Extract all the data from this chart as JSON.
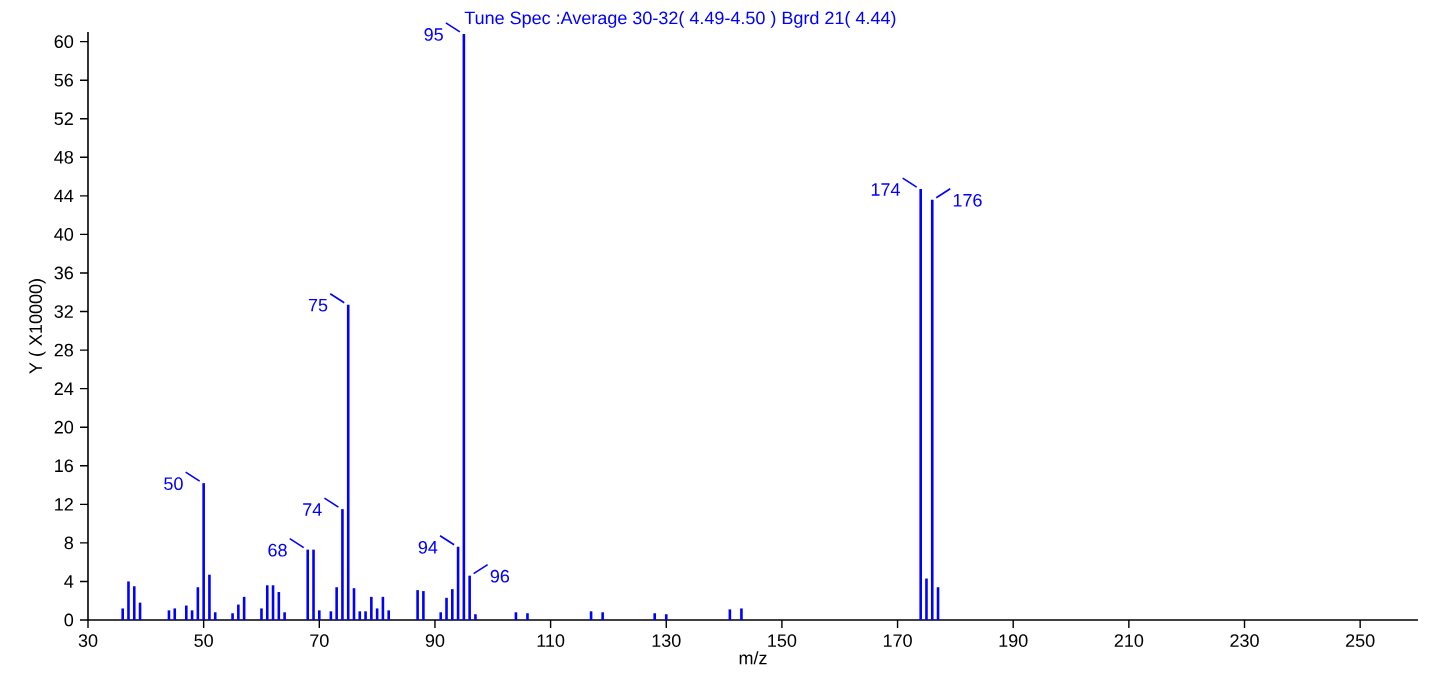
{
  "chart_data": {
    "type": "bar",
    "title": "Tune Spec :Average 30-32( 4.49-4.50 ) Bgrd 21( 4.44)",
    "xlabel": "m/z",
    "ylabel": "Y ( X10000)",
    "x": [
      36,
      37,
      38,
      39,
      44,
      45,
      47,
      48,
      49,
      50,
      51,
      52,
      55,
      56,
      57,
      60,
      61,
      62,
      63,
      64,
      68,
      69,
      70,
      72,
      73,
      74,
      75,
      76,
      77,
      78,
      79,
      80,
      81,
      82,
      87,
      88,
      91,
      92,
      93,
      94,
      95,
      96,
      97,
      104,
      106,
      117,
      119,
      128,
      130,
      141,
      143,
      174,
      175,
      176,
      177
    ],
    "values": [
      1.2,
      4.0,
      3.5,
      1.8,
      1.0,
      1.2,
      1.5,
      1.0,
      3.4,
      14.2,
      4.7,
      0.8,
      0.7,
      1.6,
      2.4,
      1.2,
      3.6,
      3.6,
      2.9,
      0.8,
      7.3,
      7.3,
      1.0,
      0.9,
      3.4,
      11.5,
      32.7,
      3.3,
      0.9,
      0.9,
      2.4,
      1.2,
      2.4,
      1.0,
      3.1,
      3.0,
      0.8,
      2.3,
      3.2,
      7.6,
      60.8,
      4.6,
      0.6,
      0.8,
      0.7,
      0.9,
      0.8,
      0.7,
      0.6,
      1.1,
      1.2,
      44.7,
      4.3,
      43.6,
      3.4
    ],
    "color": "#0000ff",
    "xlim": [
      30,
      260
    ],
    "ylim": [
      0,
      61
    ],
    "xticks": [
      30,
      50,
      70,
      90,
      110,
      130,
      150,
      170,
      190,
      210,
      230,
      250
    ],
    "yticks": [
      0,
      4,
      8,
      12,
      16,
      20,
      24,
      28,
      32,
      36,
      40,
      44,
      48,
      52,
      56,
      60
    ],
    "annotations": [
      {
        "text": "50",
        "x": 50,
        "y": 14.2
      },
      {
        "text": "68",
        "x": 68,
        "y": 7.3
      },
      {
        "text": "74",
        "x": 74,
        "y": 11.5
      },
      {
        "text": "75",
        "x": 75,
        "y": 32.7
      },
      {
        "text": "94",
        "x": 94,
        "y": 7.6
      },
      {
        "text": "95",
        "x": 95,
        "y": 60.8
      },
      {
        "text": "96",
        "x": 96,
        "y": 4.6
      },
      {
        "text": "174",
        "x": 174,
        "y": 44.7
      },
      {
        "text": "176",
        "x": 176,
        "y": 43.6
      }
    ]
  }
}
